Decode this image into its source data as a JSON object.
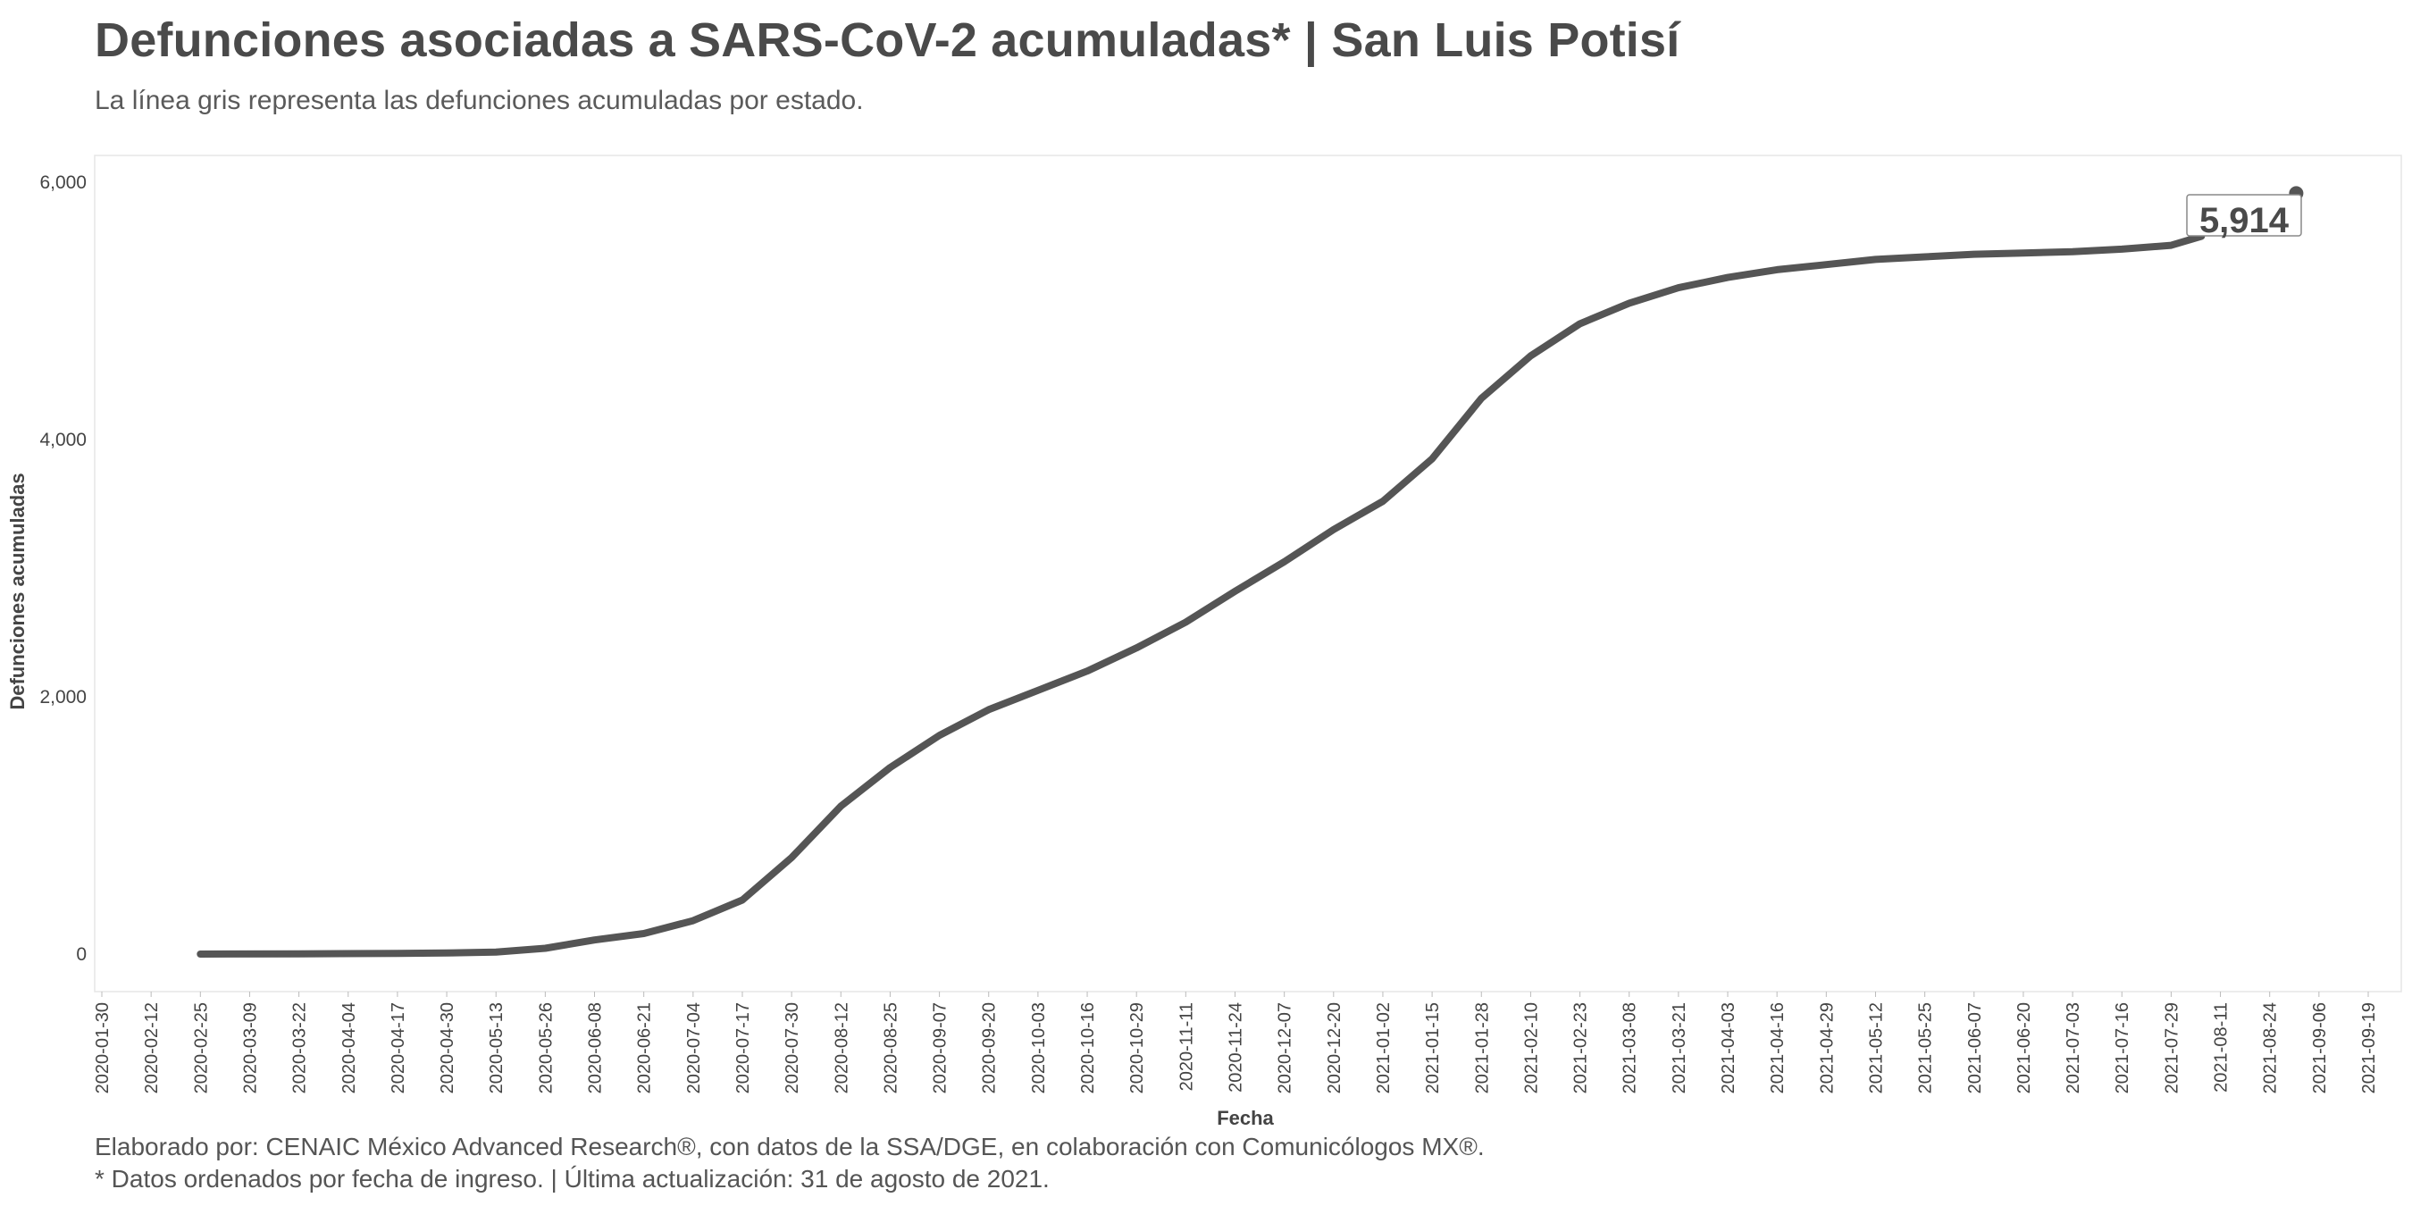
{
  "header": {
    "title": "Defunciones asociadas a SARS-CoV-2 acumuladas* | San Luis Potisí",
    "subtitle": "La línea gris representa las defunciones acumuladas por estado."
  },
  "footer": {
    "credits": "Elaborado por: CENAIC México Advanced Research®, con datos de la SSA/DGE, en colaboración con Comunicólogos MX®.",
    "note": "* Datos ordenados por fecha de ingreso. | Última actualización: 31 de agosto de 2021."
  },
  "chart_data": {
    "type": "line",
    "title": "Defunciones asociadas a SARS-CoV-2 acumuladas* | San Luis Potisí",
    "subtitle": "La línea gris representa las defunciones acumuladas por estado.",
    "xlabel": "Fecha",
    "ylabel": "Defunciones acumuladas",
    "xlim": [
      "2020-01-30",
      "2021-09-19"
    ],
    "ylim": [
      0,
      6000
    ],
    "yticks": [
      0,
      2000,
      4000,
      6000
    ],
    "ytick_labels": [
      "0",
      "2,000",
      "4,000",
      "6,000"
    ],
    "xticks": [
      "2020-01-30",
      "2020-02-12",
      "2020-02-25",
      "2020-03-09",
      "2020-03-22",
      "2020-04-04",
      "2020-04-17",
      "2020-04-30",
      "2020-05-13",
      "2020-05-26",
      "2020-06-08",
      "2020-06-21",
      "2020-07-04",
      "2020-07-17",
      "2020-07-30",
      "2020-08-12",
      "2020-08-25",
      "2020-09-07",
      "2020-09-20",
      "2020-10-03",
      "2020-10-16",
      "2020-10-29",
      "2020-11-11",
      "2020-11-24",
      "2020-12-07",
      "2020-12-20",
      "2021-01-02",
      "2021-01-15",
      "2021-01-28",
      "2021-02-10",
      "2021-02-23",
      "2021-03-08",
      "2021-03-21",
      "2021-04-03",
      "2021-04-16",
      "2021-04-29",
      "2021-05-12",
      "2021-05-25",
      "2021-06-07",
      "2021-06-20",
      "2021-07-03",
      "2021-07-16",
      "2021-07-29",
      "2021-08-11",
      "2021-08-24",
      "2021-09-06",
      "2021-09-19"
    ],
    "grid": false,
    "series": [
      {
        "color": "#555555",
        "points": [
          [
            "2020-02-25",
            0
          ],
          [
            "2020-03-22",
            2
          ],
          [
            "2020-04-17",
            5
          ],
          [
            "2020-04-30",
            8
          ],
          [
            "2020-05-13",
            15
          ],
          [
            "2020-05-26",
            45
          ],
          [
            "2020-06-08",
            110
          ],
          [
            "2020-06-21",
            160
          ],
          [
            "2020-07-04",
            260
          ],
          [
            "2020-07-17",
            420
          ],
          [
            "2020-07-30",
            750
          ],
          [
            "2020-08-12",
            1150
          ],
          [
            "2020-08-25",
            1450
          ],
          [
            "2020-09-07",
            1700
          ],
          [
            "2020-09-20",
            1900
          ],
          [
            "2020-10-03",
            2050
          ],
          [
            "2020-10-16",
            2200
          ],
          [
            "2020-10-29",
            2380
          ],
          [
            "2020-11-11",
            2580
          ],
          [
            "2020-11-24",
            2820
          ],
          [
            "2020-12-07",
            3050
          ],
          [
            "2020-12-20",
            3300
          ],
          [
            "2021-01-02",
            3520
          ],
          [
            "2021-01-15",
            3850
          ],
          [
            "2021-01-28",
            4320
          ],
          [
            "2021-02-10",
            4650
          ],
          [
            "2021-02-23",
            4900
          ],
          [
            "2021-03-08",
            5060
          ],
          [
            "2021-03-21",
            5180
          ],
          [
            "2021-04-03",
            5260
          ],
          [
            "2021-04-16",
            5320
          ],
          [
            "2021-04-29",
            5360
          ],
          [
            "2021-05-12",
            5400
          ],
          [
            "2021-05-25",
            5420
          ],
          [
            "2021-06-07",
            5440
          ],
          [
            "2021-06-20",
            5450
          ],
          [
            "2021-07-03",
            5460
          ],
          [
            "2021-07-16",
            5480
          ],
          [
            "2021-07-29",
            5510
          ],
          [
            "2021-08-06",
            5580
          ]
        ]
      }
    ],
    "end_point": {
      "date": "2021-08-31",
      "value": 5914,
      "label": "5,914"
    }
  }
}
